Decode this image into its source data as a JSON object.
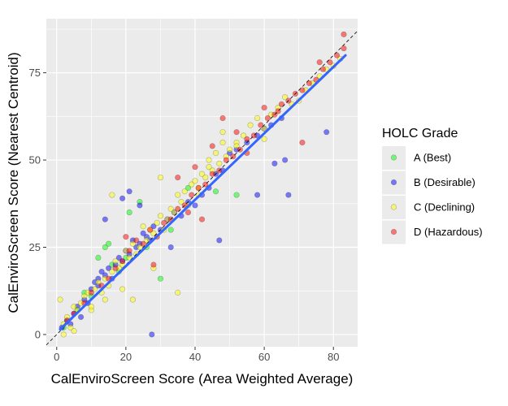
{
  "chart_data": {
    "type": "scatter",
    "xlabel": "CalEnviroScreen Score (Area Weighted Average)",
    "ylabel": "CalEnviroScreen Score (Nearest Centroid)",
    "xlim": [
      -3,
      87
    ],
    "ylim": [
      -3.5,
      90.5
    ],
    "x_ticks": [
      0,
      20,
      40,
      60,
      80
    ],
    "y_ticks": [
      0,
      25,
      50,
      75
    ],
    "x_tick_labels": [
      "0",
      "20",
      "40",
      "60",
      "80"
    ],
    "y_tick_labels": [
      "0",
      "25",
      "50",
      "75"
    ],
    "grid": true,
    "reference_line": {
      "type": "identity",
      "style": "dashed",
      "color": "#000000"
    },
    "fit_line": {
      "x": [
        1,
        83.5
      ],
      "y": [
        1.5,
        80
      ],
      "color": "#3366FF"
    },
    "legend": {
      "title": "HOLC Grade",
      "position": "right",
      "entries": [
        {
          "label": "A (Best)",
          "color": "#00FF00"
        },
        {
          "label": "B (Desirable)",
          "color": "#0000FF"
        },
        {
          "label": "C (Declining)",
          "color": "#FFFF00"
        },
        {
          "label": "D (Hazardous)",
          "color": "#FF0000"
        }
      ]
    },
    "series": [
      {
        "name": "A (Best)",
        "color": "#00FF00",
        "x": [
          2,
          6,
          8,
          10,
          12,
          14,
          16,
          18,
          20,
          21,
          24,
          26,
          30,
          33,
          38,
          46,
          52,
          15
        ],
        "y": [
          2,
          7,
          12,
          11,
          22,
          25,
          20,
          18,
          22,
          35,
          38,
          25,
          16,
          30,
          42,
          41,
          40,
          26
        ]
      },
      {
        "name": "B (Desirable)",
        "color": "#0000FF",
        "x": [
          1.5,
          3,
          4,
          5,
          6,
          7,
          8,
          9,
          10,
          11,
          12,
          13,
          14,
          15,
          16,
          17,
          18,
          19,
          20,
          21,
          22,
          23,
          24,
          25,
          26,
          27,
          28,
          30,
          32,
          34,
          36,
          38,
          40,
          42,
          44,
          46,
          48,
          50,
          52,
          55,
          58,
          60,
          62,
          65,
          67,
          27.5,
          78,
          24,
          58,
          63,
          66,
          47,
          12,
          21,
          14,
          19,
          33
        ],
        "y": [
          2,
          4,
          3,
          6,
          8,
          5,
          10,
          9,
          13,
          15,
          14,
          18,
          17,
          19,
          16,
          20,
          22,
          21,
          24,
          23,
          27,
          25,
          26,
          29,
          28,
          27,
          31,
          30,
          33,
          35,
          34,
          38,
          37,
          40,
          42,
          46,
          47,
          52,
          53,
          55,
          57,
          59,
          60,
          62,
          40,
          0,
          58,
          37,
          40,
          49,
          50,
          27,
          16,
          41,
          33,
          39,
          25
        ]
      },
      {
        "name": "C (Declining)",
        "color": "#FFFF00",
        "x": [
          1,
          2,
          3,
          4,
          5,
          6,
          7,
          8,
          9,
          10,
          11,
          12,
          13,
          14,
          15,
          16,
          17,
          18,
          19,
          20,
          21,
          22,
          23,
          24,
          25,
          26,
          27,
          28,
          29,
          30,
          31,
          32,
          33,
          34,
          35,
          36,
          37,
          38,
          39,
          40,
          41,
          42,
          43,
          44,
          45,
          46,
          47,
          48,
          49,
          50,
          52,
          54,
          56,
          58,
          60,
          62,
          64,
          66,
          68,
          70,
          72,
          74,
          76,
          78,
          80,
          82,
          5,
          2,
          10,
          14,
          19,
          28,
          41,
          44,
          22,
          35,
          52,
          60,
          48,
          30,
          16
        ],
        "y": [
          10,
          3,
          5,
          2,
          8,
          7,
          9,
          11,
          12,
          7,
          13,
          15,
          12,
          16,
          14,
          18,
          21,
          19,
          20,
          24,
          22,
          26,
          23,
          25,
          31,
          27,
          30,
          29,
          32,
          34,
          30,
          33,
          36,
          35,
          40,
          38,
          41,
          37,
          43,
          44,
          42,
          46,
          45,
          48,
          47,
          52,
          49,
          55,
          51,
          53,
          55,
          57,
          60,
          62,
          59,
          63,
          65,
          68,
          66,
          67,
          70,
          72,
          74,
          76,
          77,
          79,
          1,
          0,
          8,
          10,
          13,
          19,
          40,
          50,
          10,
          12,
          54,
          56,
          58,
          45,
          40
        ]
      },
      {
        "name": "D (Hazardous)",
        "color": "#FF0000",
        "x": [
          3,
          5,
          8,
          10,
          13,
          15,
          17,
          19,
          21,
          23,
          25,
          27,
          29,
          31,
          33,
          35,
          37,
          39,
          41,
          43,
          45,
          47,
          49,
          51,
          53,
          55,
          57,
          59,
          61,
          63,
          65,
          67,
          69,
          71,
          73,
          75,
          77,
          79,
          81,
          83,
          35,
          40,
          45,
          52,
          28,
          20,
          60,
          71,
          76,
          83,
          48,
          38,
          42,
          55,
          64
        ],
        "y": [
          4,
          6,
          9,
          12,
          14,
          16,
          19,
          21,
          24,
          27,
          26,
          30,
          28,
          32,
          33,
          36,
          37,
          40,
          42,
          43,
          46,
          47,
          50,
          51,
          53,
          56,
          57,
          60,
          62,
          63,
          66,
          67,
          69,
          70,
          72,
          73,
          76,
          78,
          80,
          86,
          45,
          48,
          54,
          58,
          20,
          28,
          65,
          55,
          78,
          82,
          62,
          35,
          33,
          52,
          64
        ]
      }
    ]
  }
}
